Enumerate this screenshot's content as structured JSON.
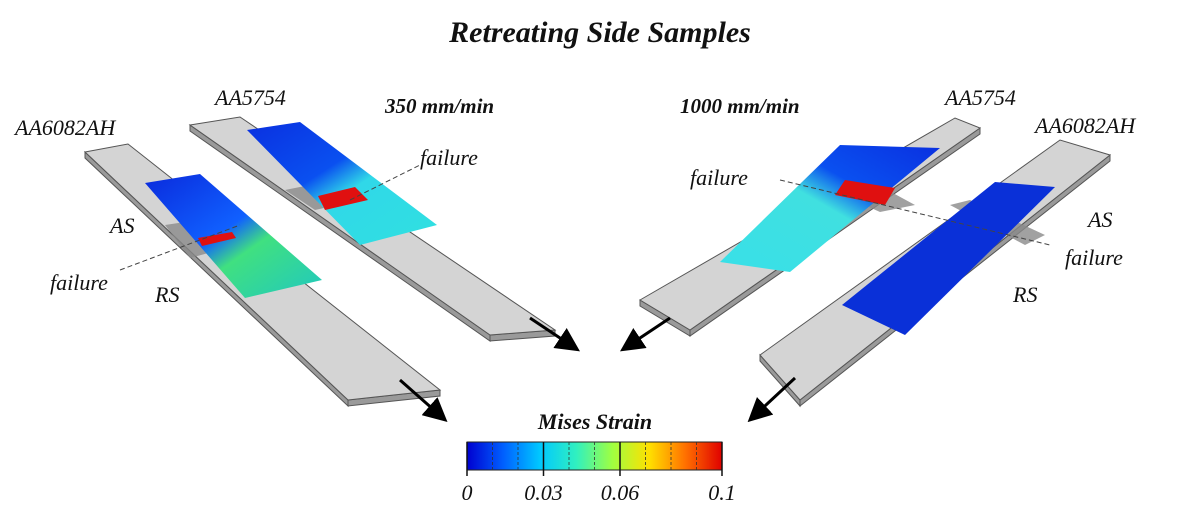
{
  "title": "Retreating Side Samples",
  "left": {
    "speed": "350 mm/min",
    "samples": [
      "AA6082AH",
      "AA5754"
    ],
    "failure_labels": [
      "failure",
      "failure"
    ],
    "sides": [
      "AS",
      "RS"
    ]
  },
  "right": {
    "speed": "1000 mm/min",
    "samples": [
      "AA5754",
      "AA6082AH"
    ],
    "failure_labels": [
      "failure",
      "failure"
    ],
    "sides": [
      "AS",
      "RS"
    ]
  },
  "colorbar": {
    "title": "Mises Strain",
    "range": [
      0,
      0.1
    ],
    "ticks": [
      0,
      0.03,
      0.06,
      0.1
    ],
    "colors": [
      "#0000d0",
      "#0060ff",
      "#00c8ff",
      "#30f0c0",
      "#a0ff40",
      "#ffe000",
      "#ff7000",
      "#e00000"
    ]
  }
}
